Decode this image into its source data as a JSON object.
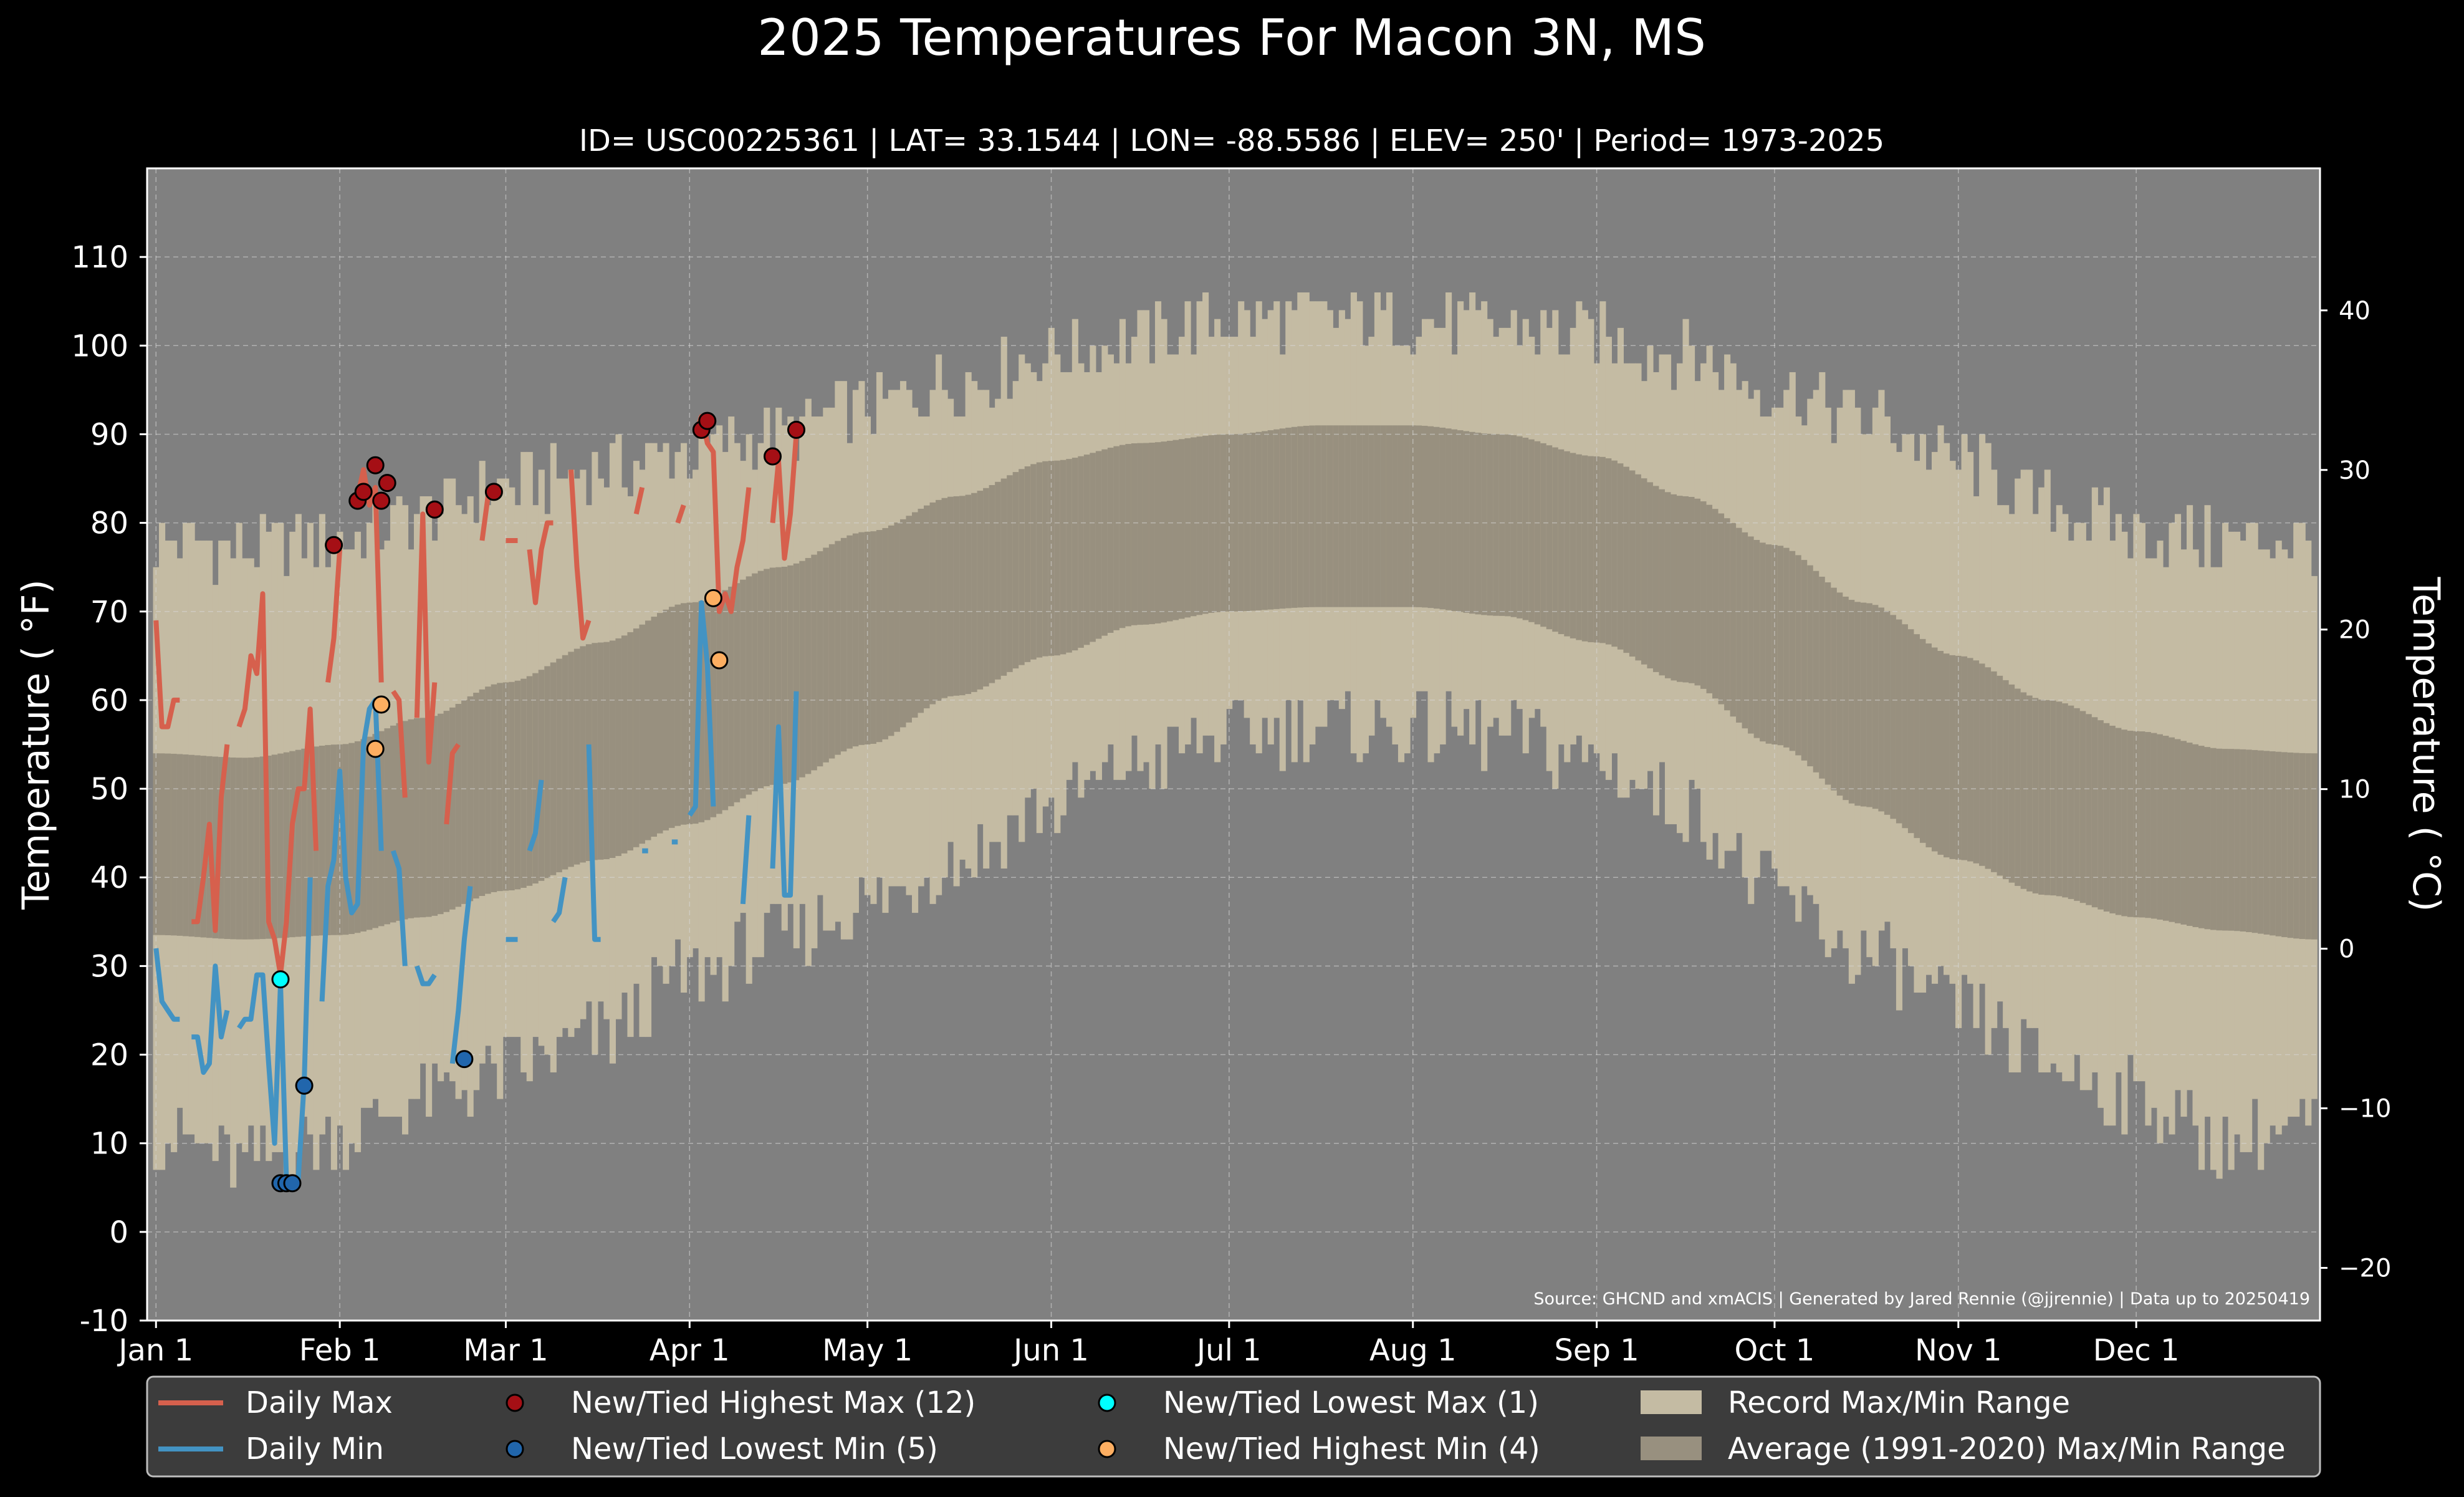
{
  "chart_data": {
    "type": "line",
    "title": "2025 Temperatures For Macon 3N, MS",
    "subtitle": "ID= USC00225361 | LAT= 33.1544 | LON= -88.5586 | ELEV= 250' | Period= 1973-2025",
    "ylabel": "Temperature ( °F)",
    "ylabel_right": "Temperature ( °C)",
    "source": "Source: GHCND and xmACIS | Generated by Jared Rennie (@jjrennie) | Data up to 20250419",
    "x_unit": "day of year",
    "xlim": [
      -1.5,
      365
    ],
    "ylim": [
      -10,
      120
    ],
    "ylim_right_celsius": [
      -23.3,
      48.9
    ],
    "grid": true,
    "y_ticks": [
      -10,
      0,
      10,
      20,
      30,
      40,
      50,
      60,
      70,
      80,
      90,
      100,
      110
    ],
    "y_ticks_right": [
      -20,
      -10,
      0,
      10,
      20,
      30,
      40
    ],
    "x_ticks": [
      {
        "day": 0,
        "label": "Jan 1"
      },
      {
        "day": 31,
        "label": "Feb 1"
      },
      {
        "day": 59,
        "label": "Mar 1"
      },
      {
        "day": 90,
        "label": "Apr 1"
      },
      {
        "day": 120,
        "label": "May 1"
      },
      {
        "day": 151,
        "label": "Jun 1"
      },
      {
        "day": 181,
        "label": "Jul 1"
      },
      {
        "day": 212,
        "label": "Aug 1"
      },
      {
        "day": 243,
        "label": "Sep 1"
      },
      {
        "day": 273,
        "label": "Oct 1"
      },
      {
        "day": 304,
        "label": "Nov 1"
      },
      {
        "day": 334,
        "label": "Dec 1"
      }
    ],
    "legend": {
      "placement": "bottom",
      "daily_max": "Daily Max",
      "daily_min": "Daily Min",
      "new_high_max": "New/Tied Highest Max (12)",
      "new_low_min": "New/Tied Lowest Min (5)",
      "new_low_max": "New/Tied Lowest Max (1)",
      "new_high_min": "New/Tied Highest Min (4)",
      "record_range": "Record Max/Min Range",
      "normal_range": "Average (1991-2020) Max/Min Range"
    },
    "colors": {
      "background": "#000000",
      "plot_background": "#808080",
      "record_band": "#c4bba3",
      "normal_band": "#98907f",
      "daily_max": "#d6604d",
      "daily_min": "#4393c3",
      "new_high_max": "#a50f15",
      "new_low_min": "#2166ac",
      "new_low_max": "#00ffff",
      "new_high_min": "#fdae61",
      "legend_bg": "#3c3c3c"
    },
    "record_high_anchors": [
      [
        0,
        78
      ],
      [
        15,
        77
      ],
      [
        31,
        78
      ],
      [
        45,
        81
      ],
      [
        59,
        84
      ],
      [
        75,
        86
      ],
      [
        90,
        88
      ],
      [
        105,
        90
      ],
      [
        120,
        93
      ],
      [
        135,
        96
      ],
      [
        151,
        99
      ],
      [
        166,
        101
      ],
      [
        181,
        103
      ],
      [
        196,
        103
      ],
      [
        212,
        103
      ],
      [
        227,
        102
      ],
      [
        243,
        101
      ],
      [
        258,
        99
      ],
      [
        273,
        95
      ],
      [
        288,
        92
      ],
      [
        304,
        87
      ],
      [
        319,
        82
      ],
      [
        334,
        79
      ],
      [
        349,
        78
      ],
      [
        364,
        78
      ]
    ],
    "record_low_anchors": [
      [
        0,
        11
      ],
      [
        15,
        8
      ],
      [
        31,
        11
      ],
      [
        45,
        15
      ],
      [
        59,
        18
      ],
      [
        75,
        22
      ],
      [
        90,
        29
      ],
      [
        105,
        33
      ],
      [
        120,
        37
      ],
      [
        135,
        42
      ],
      [
        151,
        48
      ],
      [
        166,
        53
      ],
      [
        181,
        56
      ],
      [
        196,
        57
      ],
      [
        212,
        57
      ],
      [
        227,
        56
      ],
      [
        243,
        53
      ],
      [
        258,
        48
      ],
      [
        273,
        38
      ],
      [
        288,
        31
      ],
      [
        304,
        25
      ],
      [
        319,
        19
      ],
      [
        334,
        15
      ],
      [
        349,
        10
      ],
      [
        364,
        12
      ]
    ],
    "normal_high_anchors": [
      [
        0,
        54
      ],
      [
        15,
        53.5
      ],
      [
        31,
        55
      ],
      [
        45,
        58
      ],
      [
        59,
        62
      ],
      [
        75,
        66.5
      ],
      [
        90,
        71
      ],
      [
        105,
        75
      ],
      [
        120,
        79
      ],
      [
        135,
        83
      ],
      [
        151,
        87
      ],
      [
        166,
        89
      ],
      [
        181,
        90
      ],
      [
        196,
        91
      ],
      [
        212,
        91
      ],
      [
        227,
        90
      ],
      [
        243,
        87.5
      ],
      [
        258,
        83
      ],
      [
        273,
        77.5
      ],
      [
        288,
        71
      ],
      [
        304,
        65
      ],
      [
        319,
        60
      ],
      [
        334,
        56.5
      ],
      [
        349,
        54.5
      ],
      [
        364,
        54
      ]
    ],
    "normal_low_anchors": [
      [
        0,
        33.5
      ],
      [
        15,
        33
      ],
      [
        31,
        33.5
      ],
      [
        45,
        35.5
      ],
      [
        59,
        38.5
      ],
      [
        75,
        42
      ],
      [
        90,
        46
      ],
      [
        105,
        50.5
      ],
      [
        120,
        55
      ],
      [
        135,
        60.5
      ],
      [
        151,
        65
      ],
      [
        166,
        68.5
      ],
      [
        181,
        70
      ],
      [
        196,
        70.5
      ],
      [
        212,
        70.5
      ],
      [
        227,
        69.5
      ],
      [
        243,
        66.5
      ],
      [
        258,
        62
      ],
      [
        273,
        55
      ],
      [
        288,
        48
      ],
      [
        304,
        42
      ],
      [
        319,
        38
      ],
      [
        334,
        35.5
      ],
      [
        349,
        34
      ],
      [
        364,
        33
      ]
    ],
    "daily_max": [
      [
        0,
        69
      ],
      [
        1,
        57
      ],
      [
        2,
        57
      ],
      [
        3,
        60
      ],
      [
        4,
        60
      ],
      [
        5,
        null
      ],
      [
        6,
        35
      ],
      [
        7,
        35
      ],
      [
        8,
        40
      ],
      [
        9,
        46
      ],
      [
        10,
        34
      ],
      [
        11,
        49
      ],
      [
        12,
        55
      ],
      [
        13,
        null
      ],
      [
        14,
        57
      ],
      [
        15,
        59
      ],
      [
        16,
        65
      ],
      [
        17,
        63
      ],
      [
        18,
        72
      ],
      [
        19,
        35
      ],
      [
        20,
        33
      ],
      [
        21,
        29
      ],
      [
        22,
        35
      ],
      [
        23,
        46
      ],
      [
        24,
        50
      ],
      [
        25,
        50
      ],
      [
        26,
        59
      ],
      [
        27,
        43
      ],
      [
        28,
        null
      ],
      [
        29,
        62
      ],
      [
        30,
        67
      ],
      [
        31,
        77
      ],
      [
        32,
        null
      ],
      [
        33,
        82
      ],
      [
        34,
        83
      ],
      [
        35,
        86
      ],
      [
        36,
        82
      ],
      [
        37,
        84
      ],
      [
        38,
        62
      ],
      [
        39,
        null
      ],
      [
        40,
        61
      ],
      [
        41,
        60
      ],
      [
        42,
        49
      ],
      [
        43,
        null
      ],
      [
        44,
        58
      ],
      [
        45,
        81
      ],
      [
        46,
        53
      ],
      [
        47,
        62
      ],
      [
        48,
        null
      ],
      [
        49,
        46
      ],
      [
        50,
        54
      ],
      [
        51,
        55
      ],
      [
        52,
        null
      ],
      [
        53,
        null
      ],
      [
        54,
        null
      ],
      [
        55,
        78
      ],
      [
        56,
        83
      ],
      [
        57,
        null
      ],
      [
        58,
        null
      ],
      [
        59,
        78
      ],
      [
        60,
        78
      ],
      [
        61,
        78
      ],
      [
        62,
        null
      ],
      [
        63,
        77
      ],
      [
        64,
        71
      ],
      [
        65,
        77
      ],
      [
        66,
        80
      ],
      [
        67,
        80
      ],
      [
        68,
        null
      ],
      [
        69,
        null
      ],
      [
        70,
        86
      ],
      [
        71,
        75
      ],
      [
        72,
        67
      ],
      [
        73,
        69
      ],
      [
        74,
        null
      ],
      [
        75,
        null
      ],
      [
        76,
        null
      ],
      [
        77,
        null
      ],
      [
        78,
        null
      ],
      [
        79,
        null
      ],
      [
        80,
        null
      ],
      [
        81,
        81
      ],
      [
        82,
        84
      ],
      [
        83,
        null
      ],
      [
        84,
        null
      ],
      [
        85,
        null
      ],
      [
        86,
        null
      ],
      [
        87,
        null
      ],
      [
        88,
        80
      ],
      [
        89,
        82
      ],
      [
        90,
        null
      ],
      [
        91,
        90
      ],
      [
        92,
        92
      ],
      [
        93,
        89
      ],
      [
        94,
        88
      ],
      [
        95,
        70
      ],
      [
        96,
        72
      ],
      [
        97,
        70
      ],
      [
        98,
        75
      ],
      [
        99,
        78
      ],
      [
        100,
        84
      ],
      [
        101,
        null
      ],
      [
        102,
        null
      ],
      [
        103,
        null
      ],
      [
        104,
        80
      ],
      [
        105,
        87
      ],
      [
        106,
        76
      ],
      [
        107,
        81
      ],
      [
        108,
        90
      ]
    ],
    "daily_min": [
      [
        0,
        32
      ],
      [
        1,
        26
      ],
      [
        2,
        25
      ],
      [
        3,
        24
      ],
      [
        4,
        24
      ],
      [
        5,
        null
      ],
      [
        6,
        22
      ],
      [
        7,
        22
      ],
      [
        8,
        18
      ],
      [
        9,
        19
      ],
      [
        10,
        30
      ],
      [
        11,
        22
      ],
      [
        12,
        25
      ],
      [
        13,
        null
      ],
      [
        14,
        23
      ],
      [
        15,
        24
      ],
      [
        16,
        24
      ],
      [
        17,
        29
      ],
      [
        18,
        29
      ],
      [
        19,
        19
      ],
      [
        20,
        10
      ],
      [
        21,
        28
      ],
      [
        22,
        6
      ],
      [
        23,
        6
      ],
      [
        24,
        6
      ],
      [
        25,
        17
      ],
      [
        26,
        40
      ],
      [
        27,
        null
      ],
      [
        28,
        26
      ],
      [
        29,
        39
      ],
      [
        30,
        42
      ],
      [
        31,
        52
      ],
      [
        32,
        40
      ],
      [
        33,
        36
      ],
      [
        34,
        37
      ],
      [
        35,
        55
      ],
      [
        36,
        59
      ],
      [
        37,
        60
      ],
      [
        38,
        43
      ],
      [
        39,
        null
      ],
      [
        40,
        43
      ],
      [
        41,
        41
      ],
      [
        42,
        30
      ],
      [
        43,
        null
      ],
      [
        44,
        30
      ],
      [
        45,
        28
      ],
      [
        46,
        28
      ],
      [
        47,
        29
      ],
      [
        48,
        null
      ],
      [
        49,
        null
      ],
      [
        50,
        19
      ],
      [
        51,
        25
      ],
      [
        52,
        33
      ],
      [
        53,
        39
      ],
      [
        54,
        null
      ],
      [
        55,
        null
      ],
      [
        56,
        null
      ],
      [
        57,
        null
      ],
      [
        58,
        null
      ],
      [
        59,
        33
      ],
      [
        60,
        33
      ],
      [
        61,
        33
      ],
      [
        62,
        null
      ],
      [
        63,
        43
      ],
      [
        64,
        45
      ],
      [
        65,
        51
      ],
      [
        66,
        null
      ],
      [
        67,
        35
      ],
      [
        68,
        36
      ],
      [
        69,
        40
      ],
      [
        70,
        null
      ],
      [
        71,
        null
      ],
      [
        72,
        null
      ],
      [
        73,
        55
      ],
      [
        74,
        33
      ],
      [
        75,
        33
      ],
      [
        76,
        null
      ],
      [
        77,
        null
      ],
      [
        78,
        null
      ],
      [
        79,
        null
      ],
      [
        80,
        null
      ],
      [
        81,
        null
      ],
      [
        82,
        43
      ],
      [
        83,
        43
      ],
      [
        84,
        null
      ],
      [
        85,
        null
      ],
      [
        86,
        null
      ],
      [
        87,
        44
      ],
      [
        88,
        44
      ],
      [
        89,
        null
      ],
      [
        90,
        47
      ],
      [
        91,
        48
      ],
      [
        92,
        71
      ],
      [
        93,
        64
      ],
      [
        94,
        48
      ],
      [
        95,
        null
      ],
      [
        96,
        null
      ],
      [
        97,
        null
      ],
      [
        98,
        null
      ],
      [
        99,
        37
      ],
      [
        100,
        47
      ],
      [
        101,
        null
      ],
      [
        102,
        null
      ],
      [
        103,
        null
      ],
      [
        104,
        41
      ],
      [
        105,
        57
      ],
      [
        106,
        38
      ],
      [
        107,
        38
      ],
      [
        108,
        61
      ]
    ],
    "new_high_max_points": [
      [
        30,
        77.5
      ],
      [
        34,
        82.5
      ],
      [
        35,
        83.5
      ],
      [
        37,
        86.5
      ],
      [
        38,
        82.5
      ],
      [
        39,
        84.5
      ],
      [
        47,
        81.5
      ],
      [
        57,
        83.5
      ],
      [
        92,
        90.5
      ],
      [
        93,
        91.5
      ],
      [
        104,
        87.5
      ],
      [
        108,
        90.5
      ]
    ],
    "new_low_min_points": [
      [
        21,
        5.5
      ],
      [
        22,
        5.5
      ],
      [
        23,
        5.5
      ],
      [
        25,
        16.5
      ],
      [
        52,
        19.5
      ]
    ],
    "new_low_max_points": [
      [
        21,
        28.5
      ]
    ],
    "new_high_min_points": [
      [
        37,
        54.5
      ],
      [
        38,
        59.5
      ],
      [
        94,
        71.5
      ],
      [
        95,
        64.5
      ]
    ]
  }
}
